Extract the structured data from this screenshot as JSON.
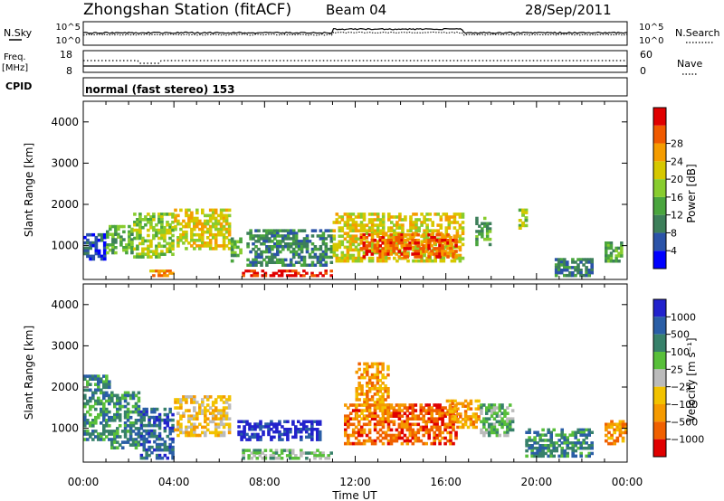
{
  "header": {
    "station": "Zhongshan Station (fitACF)",
    "beam": "Beam 04",
    "date": "28/Sep/2011"
  },
  "top_panels": {
    "nsky_label": "N.Sky",
    "nsky_ticks": [
      "10^5",
      "10^0"
    ],
    "nsearch_label": "N.Search",
    "nsearch_ticks": [
      "10^5",
      "10^0"
    ],
    "freq_label": "Freq.",
    "freq_unit": "[MHz]",
    "freq_ticks": [
      "18",
      "8"
    ],
    "nave_label": "Nave",
    "nave_ticks": [
      "60",
      "0"
    ],
    "cpid_label": "CPID",
    "cpid_text": "normal (fast stereo) 153"
  },
  "colors": {
    "power": [
      "#0000ff",
      "#2b53a8",
      "#3d7f5a",
      "#4aa53e",
      "#88cc2e",
      "#d6c800",
      "#f59c00",
      "#f05a00",
      "#e00000"
    ],
    "velocity": [
      "#2222cc",
      "#2a5ea6",
      "#37816a",
      "#58bf3a",
      "#bbbbbb",
      "#f2c200",
      "#f59a00",
      "#f06000",
      "#e00000"
    ]
  },
  "chart_data": [
    {
      "type": "heatmap",
      "panel": "power",
      "xlabel": "",
      "ylabel": "Slant Range [km]",
      "x_ticks": [
        "00:00",
        "04:00",
        "08:00",
        "12:00",
        "16:00",
        "20:00",
        "00:00"
      ],
      "xlim_hours": [
        0,
        24
      ],
      "ylim": [
        180,
        4500
      ],
      "y_ticks": [
        1000,
        2000,
        3000,
        4000
      ],
      "colorbar_label": "Power [dB]",
      "colorbar_ticks": [
        "4",
        "8",
        "12",
        "16",
        "20",
        "24",
        "28"
      ],
      "scatter_regions": [
        {
          "t0": 0.0,
          "t1": 1.0,
          "r0": 650,
          "r1": 1300,
          "level": 1
        },
        {
          "t0": 1.0,
          "t1": 2.2,
          "r0": 800,
          "r1": 1500,
          "level": 3
        },
        {
          "t0": 2.2,
          "t1": 4.0,
          "r0": 700,
          "r1": 1800,
          "level": 4
        },
        {
          "t0": 2.8,
          "t1": 4.0,
          "r0": 250,
          "r1": 420,
          "level": 6
        },
        {
          "t0": 4.0,
          "t1": 6.5,
          "r0": 900,
          "r1": 1900,
          "level": 5
        },
        {
          "t0": 6.5,
          "t1": 7.0,
          "r0": 600,
          "r1": 1200,
          "level": 3
        },
        {
          "t0": 7.0,
          "t1": 11.0,
          "r0": 250,
          "r1": 420,
          "level": 8
        },
        {
          "t0": 7.2,
          "t1": 11.0,
          "r0": 500,
          "r1": 1400,
          "level": 2
        },
        {
          "t0": 11.0,
          "t1": 16.8,
          "r0": 600,
          "r1": 1800,
          "level": 5
        },
        {
          "t0": 12.2,
          "t1": 16.5,
          "r0": 700,
          "r1": 1300,
          "level": 7
        },
        {
          "t0": 17.3,
          "t1": 18.0,
          "r0": 1000,
          "r1": 1700,
          "level": 3
        },
        {
          "t0": 19.2,
          "t1": 19.6,
          "r0": 1400,
          "r1": 1900,
          "level": 4
        },
        {
          "t0": 20.8,
          "t1": 22.5,
          "r0": 250,
          "r1": 700,
          "level": 2
        },
        {
          "t0": 23.0,
          "t1": 23.8,
          "r0": 600,
          "r1": 1100,
          "level": 3
        }
      ]
    },
    {
      "type": "heatmap",
      "panel": "velocity",
      "xlabel": "Time UT",
      "ylabel": "Slant Range [km]",
      "x_ticks": [
        "00:00",
        "04:00",
        "08:00",
        "12:00",
        "16:00",
        "20:00",
        "00:00"
      ],
      "xlim_hours": [
        0,
        24
      ],
      "ylim": [
        180,
        4500
      ],
      "y_ticks": [
        1000,
        2000,
        3000,
        4000
      ],
      "colorbar_label": "Velocity [m s⁻¹]",
      "colorbar_ticks": [
        "1000",
        "500",
        "100",
        "25",
        "−25",
        "−100",
        "−500",
        "−1000"
      ],
      "scatter_regions": [
        {
          "t0": 0.0,
          "t1": 1.2,
          "r0": 700,
          "r1": 2300,
          "level": 2
        },
        {
          "t0": 1.2,
          "t1": 2.5,
          "r0": 500,
          "r1": 1900,
          "level": 2
        },
        {
          "t0": 2.5,
          "t1": 4.0,
          "r0": 250,
          "r1": 1500,
          "level": 1
        },
        {
          "t0": 4.0,
          "t1": 6.5,
          "r0": 800,
          "r1": 1800,
          "level": 5
        },
        {
          "t0": 6.8,
          "t1": 10.5,
          "r0": 700,
          "r1": 1200,
          "level": 0
        },
        {
          "t0": 7.0,
          "t1": 11.0,
          "r0": 250,
          "r1": 500,
          "level": 3
        },
        {
          "t0": 11.5,
          "t1": 16.5,
          "r0": 600,
          "r1": 1600,
          "level": 7
        },
        {
          "t0": 12.0,
          "t1": 13.5,
          "r0": 1200,
          "r1": 2600,
          "level": 6
        },
        {
          "t0": 16.0,
          "t1": 17.5,
          "r0": 1000,
          "r1": 1700,
          "level": 6
        },
        {
          "t0": 17.5,
          "t1": 19.0,
          "r0": 800,
          "r1": 1600,
          "level": 3
        },
        {
          "t0": 19.5,
          "t1": 22.5,
          "r0": 300,
          "r1": 1000,
          "level": 2
        },
        {
          "t0": 23.0,
          "t1": 24.0,
          "r0": 600,
          "r1": 1200,
          "level": 6
        }
      ]
    }
  ]
}
